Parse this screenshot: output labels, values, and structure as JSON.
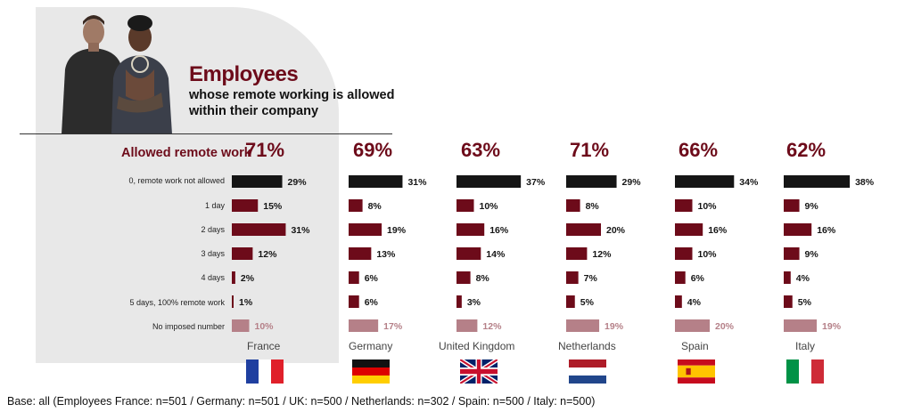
{
  "title": "Employees",
  "subtitle": "whose remote working is allowed within their company",
  "allowed_label": "Allowed remote work",
  "base_note": "Base: all (Employees France: n=501 / Germany: n=501 / UK: n=500 / Netherlands: n=302 / Spain: n=500 / Italy: n=500)",
  "colors": {
    "black": "#151515",
    "maroon": "#6d0b1a",
    "pink": "#b58088",
    "panel": "#e8e8e8"
  },
  "chart_data": {
    "type": "bar",
    "categories": [
      "0, remote work not allowed",
      "1 day",
      "2 days",
      "3 days",
      "4 days",
      "5 days, 100% remote work",
      "No imposed number"
    ],
    "series": [
      {
        "name": "France",
        "allowed": "71%",
        "values": [
          29,
          15,
          31,
          12,
          2,
          1,
          10
        ],
        "flag": "france"
      },
      {
        "name": "Germany",
        "allowed": "69%",
        "values": [
          31,
          8,
          19,
          13,
          6,
          6,
          17
        ],
        "flag": "germany"
      },
      {
        "name": "United Kingdom",
        "allowed": "63%",
        "values": [
          37,
          10,
          16,
          14,
          8,
          3,
          12
        ],
        "flag": "uk"
      },
      {
        "name": "Netherlands",
        "allowed": "71%",
        "values": [
          29,
          8,
          20,
          12,
          7,
          5,
          19
        ],
        "flag": "netherlands"
      },
      {
        "name": "Spain",
        "allowed": "66%",
        "values": [
          34,
          10,
          16,
          10,
          6,
          4,
          20
        ],
        "flag": "spain"
      },
      {
        "name": "Italy",
        "allowed": "62%",
        "values": [
          38,
          9,
          16,
          9,
          4,
          5,
          19
        ],
        "flag": "italy"
      }
    ],
    "unit": "%"
  }
}
